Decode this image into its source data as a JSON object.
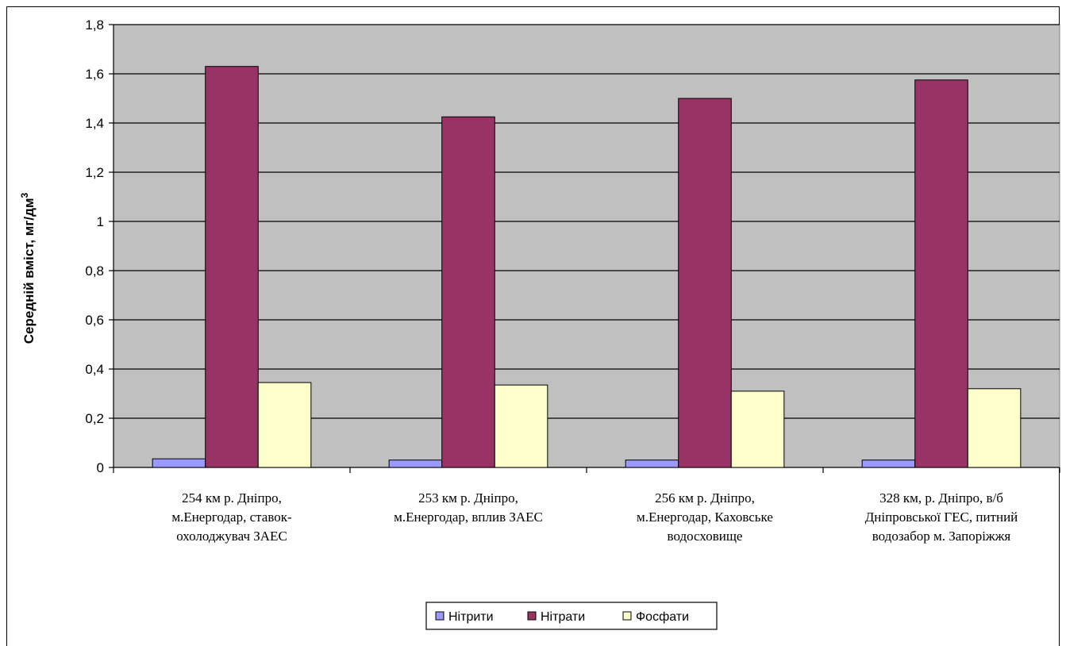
{
  "chart_data": {
    "type": "bar",
    "title": "",
    "xlabel": "",
    "ylabel": "Середній вміст, мг/дм",
    "ylabel_superscript": "3",
    "ylim": [
      0,
      1.8
    ],
    "yticks": [
      "0",
      "0,2",
      "0,4",
      "0,6",
      "0,8",
      "1",
      "1,2",
      "1,4",
      "1,6",
      "1,8"
    ],
    "grid": true,
    "legend_position": "bottom",
    "categories": [
      [
        "254 км р. Дніпро,",
        "м.Енергодар, ставок-",
        "охолоджувач ЗАЕС"
      ],
      [
        "253 км р. Дніпро,",
        "м.Енергодар, вплив ЗАЕС"
      ],
      [
        "256 км р. Дніпро,",
        "м.Енергодар, Каховське",
        "водосховище"
      ],
      [
        "328 км, р. Дніпро, в/б",
        "Дніпровської ГЕС, питний",
        "водозабор м. Запоріжжя"
      ]
    ],
    "series": [
      {
        "name": "Нітрити",
        "color": "#9999ff",
        "values": [
          0.035,
          0.03,
          0.03,
          0.03
        ]
      },
      {
        "name": "Нітрати",
        "color": "#993366",
        "values": [
          1.63,
          1.425,
          1.5,
          1.575
        ]
      },
      {
        "name": "Фосфати",
        "color": "#ffffcc",
        "values": [
          0.345,
          0.335,
          0.31,
          0.32
        ]
      }
    ],
    "plot_background": "#c0c0c0"
  }
}
